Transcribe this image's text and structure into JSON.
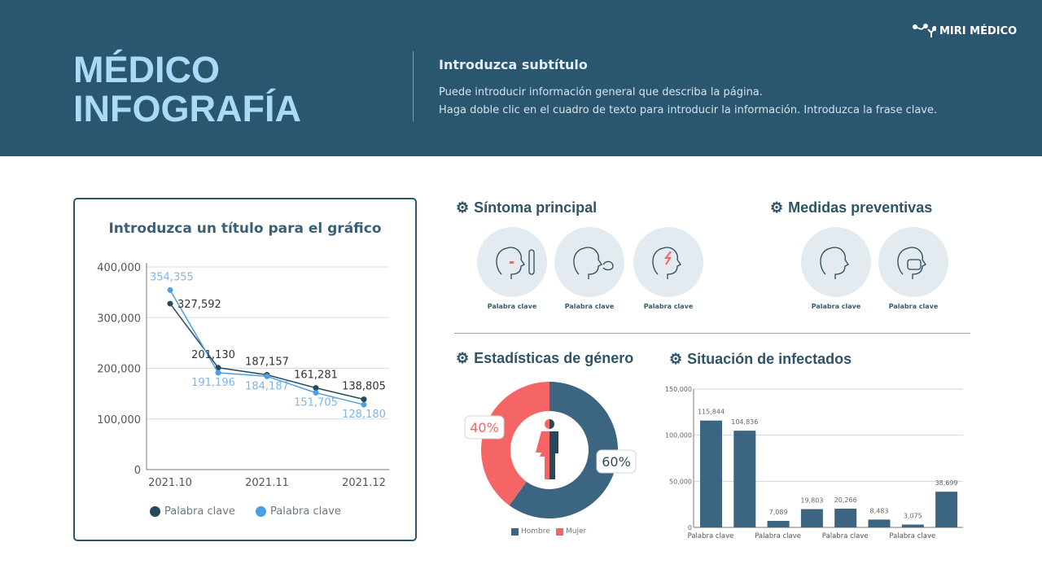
{
  "header": {
    "title_line1": "MÉDICO",
    "title_line2": "INFOGRAFÍA",
    "subtitle": "Introduzca subtítulo",
    "desc_line1": "Puede introducir información general que describa la página.",
    "desc_line2": "Haga doble clic en el cuadro de texto para introducir la información. Introduzca la frase clave.",
    "logo": "MIRI MÉDICO"
  },
  "sections": {
    "symptom": "Síntoma principal",
    "prevent": "Medidas preventivas",
    "gender": "Estadísticas de género",
    "infected": "Situación de infectados"
  },
  "symptoms": [
    {
      "label": "Palabra clave",
      "icon": "fever-icon"
    },
    {
      "label": "Palabra clave",
      "icon": "cough-icon"
    },
    {
      "label": "Palabra clave",
      "icon": "headache-icon"
    }
  ],
  "preventive": [
    {
      "label": "Palabra clave",
      "icon": "handwash-icon"
    },
    {
      "label": "Palabra clave",
      "icon": "mask-icon"
    }
  ],
  "colors": {
    "header": "#2a5670",
    "navy": "#264a5c",
    "blue": "#4a9fe8",
    "bar": "#3b6580",
    "red": "#f56565"
  },
  "chart_data": [
    {
      "type": "line",
      "title": "Introduzca un título para el gráfico",
      "categories": [
        "2021.10",
        "",
        "2021.11",
        "",
        "2021.12"
      ],
      "ylim": [
        0,
        400000
      ],
      "yticks": [
        "0",
        "100,000",
        "200,000",
        "300,000",
        "400,000"
      ],
      "grid": true,
      "legend": "bottom",
      "series": [
        {
          "name": "Palabra clave",
          "color": "#264a5c",
          "values": [
            327592,
            201130,
            187157,
            161281,
            138805
          ],
          "labels": [
            "327,592",
            "201,130",
            "187,157",
            "161,281",
            "138,805"
          ]
        },
        {
          "name": "Palabra clave",
          "color": "#4a9fe8",
          "values": [
            354355,
            191196,
            184187,
            151705,
            128180
          ],
          "labels": [
            "354,355",
            "191,196",
            "184,187",
            "151,705",
            "128,180"
          ]
        }
      ]
    },
    {
      "type": "pie",
      "donut": true,
      "series": [
        {
          "name": "Hombre",
          "value": 60,
          "label": "60%",
          "color": "#3b6580"
        },
        {
          "name": "Mujer",
          "value": 40,
          "label": "40%",
          "color": "#f56565"
        }
      ],
      "legend": "bottom"
    },
    {
      "type": "bar",
      "categories": [
        "Palabra clave",
        "",
        "Palabra clave",
        "",
        "Palabra clave",
        "",
        "Palabra clave",
        ""
      ],
      "values": [
        115844,
        104836,
        7089,
        19803,
        20266,
        8483,
        3075,
        38699
      ],
      "labels": [
        "115,844",
        "104,836",
        "7,089",
        "19,803",
        "20,266",
        "8,483",
        "3,075",
        "38,699"
      ],
      "ylim": [
        0,
        150000
      ],
      "yticks": [
        "0",
        "50,000",
        "100,000",
        "150,000"
      ],
      "grid": true
    }
  ]
}
